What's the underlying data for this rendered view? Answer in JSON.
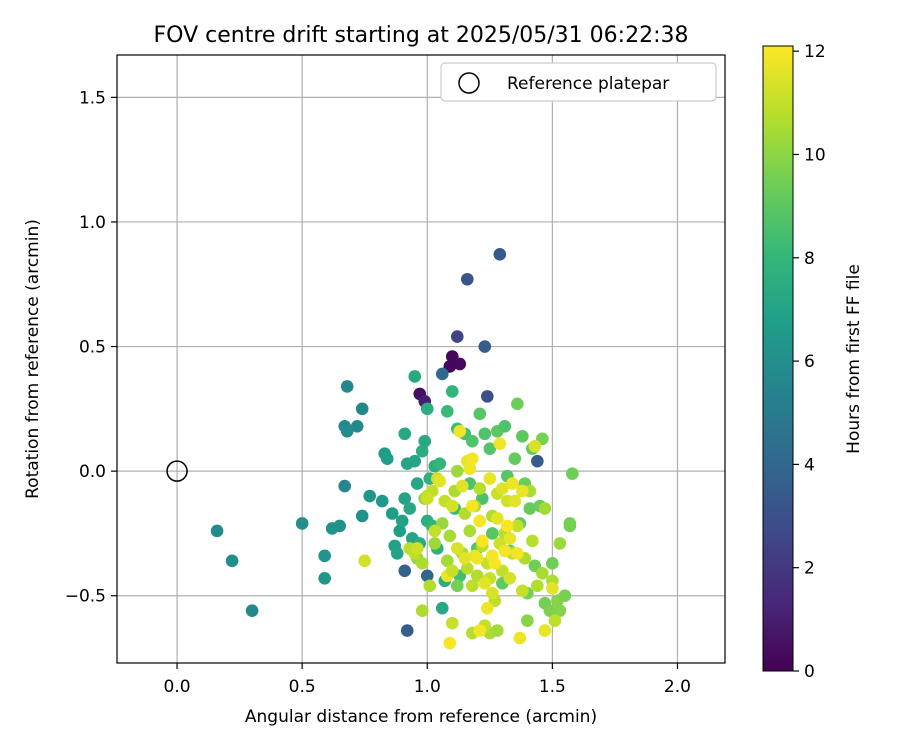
{
  "chart_data": {
    "type": "scatter",
    "title": "FOV centre drift starting at 2025/05/31 06:22:38",
    "xlabel": "Angular distance from reference (arcmin)",
    "ylabel": "Rotation from reference (arcmin)",
    "xlim": [
      -0.24,
      2.19
    ],
    "ylim": [
      -0.77,
      1.67
    ],
    "xticks": [
      0.0,
      0.5,
      1.0,
      1.5,
      2.0
    ],
    "xtick_labels": [
      "0.0",
      "0.5",
      "1.0",
      "1.5",
      "2.0"
    ],
    "yticks": [
      -0.5,
      0.0,
      0.5,
      1.0,
      1.5
    ],
    "ytick_labels": [
      "−0.5",
      "0.0",
      "0.5",
      "1.0",
      "1.5"
    ],
    "grid": true,
    "legend": {
      "placement": "top-right",
      "entries": [
        "Reference platepar"
      ]
    },
    "reference_point": {
      "x": 0.0,
      "y": 0.0,
      "label": "Reference platepar"
    },
    "colorbar": {
      "label": "Hours from first FF file",
      "colormap": "viridis",
      "range": [
        0,
        12.1
      ],
      "ticks": [
        0,
        2,
        4,
        6,
        8,
        10,
        12
      ],
      "tick_labels": [
        "0",
        "2",
        "4",
        "6",
        "8",
        "10",
        "12"
      ]
    },
    "colormap_stops": [
      "#440154",
      "#482878",
      "#3e4989",
      "#31688e",
      "#26828e",
      "#1f9e89",
      "#35b779",
      "#6ece58",
      "#b5de2b",
      "#fde725"
    ],
    "series": [
      {
        "points": [
          [
            1.1,
            0.46,
            0.1
          ],
          [
            1.13,
            0.43,
            0.3
          ],
          [
            1.09,
            0.42,
            0.2
          ],
          [
            0.97,
            0.31,
            0.5
          ],
          [
            0.99,
            0.28,
            1.0
          ],
          [
            1.12,
            0.54,
            2.5
          ],
          [
            1.16,
            0.77,
            3.2
          ],
          [
            1.29,
            0.87,
            3.4
          ],
          [
            1.23,
            0.5,
            3.6
          ],
          [
            1.24,
            0.3,
            3.0
          ],
          [
            1.06,
            0.39,
            4.2
          ],
          [
            1.44,
            0.04,
            3.5
          ],
          [
            0.92,
            -0.64,
            3.6
          ],
          [
            0.91,
            -0.4,
            3.8
          ],
          [
            1.0,
            -0.42,
            4.0
          ],
          [
            0.68,
            0.34,
            5.6
          ],
          [
            0.67,
            0.18,
            5.8
          ],
          [
            0.68,
            0.16,
            5.9
          ],
          [
            0.72,
            0.18,
            5.7
          ],
          [
            0.74,
            0.25,
            5.7
          ],
          [
            0.67,
            -0.06,
            5.6
          ],
          [
            0.16,
            -0.24,
            5.8
          ],
          [
            0.22,
            -0.36,
            5.9
          ],
          [
            0.3,
            -0.56,
            5.7
          ],
          [
            0.5,
            -0.21,
            6.0
          ],
          [
            0.59,
            -0.34,
            6.3
          ],
          [
            0.59,
            -0.43,
            6.4
          ],
          [
            0.62,
            -0.23,
            6.2
          ],
          [
            0.65,
            -0.22,
            6.1
          ],
          [
            0.74,
            -0.18,
            6.2
          ],
          [
            0.77,
            -0.1,
            6.4
          ],
          [
            0.82,
            -0.12,
            6.5
          ],
          [
            0.83,
            0.07,
            6.6
          ],
          [
            0.84,
            0.05,
            6.7
          ],
          [
            0.86,
            -0.17,
            6.8
          ],
          [
            0.87,
            -0.3,
            6.9
          ],
          [
            0.88,
            -0.33,
            7.0
          ],
          [
            0.89,
            -0.24,
            6.8
          ],
          [
            0.9,
            -0.2,
            6.9
          ],
          [
            0.91,
            -0.11,
            7.0
          ],
          [
            0.91,
            0.15,
            7.2
          ],
          [
            0.92,
            0.03,
            7.1
          ],
          [
            0.93,
            -0.15,
            7.2
          ],
          [
            0.94,
            -0.27,
            7.0
          ],
          [
            0.95,
            0.38,
            7.3
          ],
          [
            0.95,
            0.04,
            7.1
          ],
          [
            0.96,
            -0.05,
            7.2
          ],
          [
            0.97,
            -0.29,
            7.4
          ],
          [
            0.98,
            0.08,
            7.5
          ],
          [
            0.99,
            0.12,
            7.3
          ],
          [
            1.0,
            -0.2,
            7.6
          ],
          [
            1.0,
            0.25,
            7.5
          ],
          [
            1.01,
            -0.03,
            7.7
          ],
          [
            1.02,
            -0.22,
            7.8
          ],
          [
            1.03,
            0.02,
            7.6
          ],
          [
            1.04,
            -0.31,
            7.7
          ],
          [
            1.05,
            0.03,
            8.0
          ],
          [
            1.06,
            -0.55,
            7.2
          ],
          [
            1.07,
            -0.44,
            7.4
          ],
          [
            1.08,
            0.24,
            8.2
          ],
          [
            1.1,
            0.32,
            7.9
          ],
          [
            1.11,
            -0.15,
            8.1
          ],
          [
            1.12,
            0.17,
            8.3
          ],
          [
            1.13,
            -0.42,
            8.4
          ],
          [
            1.15,
            0.15,
            8.5
          ],
          [
            1.17,
            -0.05,
            8.6
          ],
          [
            1.18,
            0.12,
            8.7
          ],
          [
            1.2,
            -0.31,
            8.8
          ],
          [
            1.21,
            0.23,
            8.9
          ],
          [
            1.22,
            -0.11,
            8.6
          ],
          [
            1.23,
            0.15,
            8.7
          ],
          [
            1.25,
            0.09,
            8.8
          ],
          [
            1.26,
            -0.25,
            8.9
          ],
          [
            1.28,
            0.16,
            9.0
          ],
          [
            1.3,
            -0.45,
            9.1
          ],
          [
            1.31,
            0.18,
            8.7
          ],
          [
            1.32,
            -0.02,
            8.8
          ],
          [
            1.33,
            -0.32,
            9.0
          ],
          [
            1.35,
            0.05,
            9.2
          ],
          [
            1.36,
            0.27,
            9.4
          ],
          [
            1.37,
            -0.21,
            9.1
          ],
          [
            1.38,
            0.14,
            9.0
          ],
          [
            1.39,
            -0.05,
            9.3
          ],
          [
            1.4,
            -0.49,
            9.5
          ],
          [
            1.41,
            -0.15,
            9.2
          ],
          [
            1.42,
            0.09,
            9.1
          ],
          [
            1.43,
            -0.38,
            9.4
          ],
          [
            1.45,
            -0.14,
            9.3
          ],
          [
            1.46,
            0.13,
            9.6
          ],
          [
            1.47,
            -0.53,
            9.5
          ],
          [
            1.49,
            -0.56,
            9.7
          ],
          [
            1.5,
            -0.37,
            9.4
          ],
          [
            1.52,
            -0.52,
            9.8
          ],
          [
            1.55,
            -0.5,
            9.6
          ],
          [
            1.57,
            -0.21,
            9.5
          ],
          [
            1.57,
            -0.22,
            9.6
          ],
          [
            1.58,
            -0.01,
            9.4
          ],
          [
            1.53,
            -0.56,
            9.8
          ],
          [
            1.4,
            -0.6,
            9.9
          ],
          [
            1.12,
            -0.46,
            9.5
          ],
          [
            0.99,
            -0.11,
            10.0
          ],
          [
            0.96,
            -0.35,
            10.1
          ],
          [
            1.03,
            -0.29,
            10.3
          ],
          [
            1.06,
            -0.21,
            10.2
          ],
          [
            1.08,
            -0.36,
            10.4
          ],
          [
            1.09,
            -0.26,
            10.5
          ],
          [
            1.11,
            -0.08,
            10.6
          ],
          [
            1.12,
            0.0,
            10.3
          ],
          [
            1.14,
            -0.33,
            10.5
          ],
          [
            1.15,
            -0.17,
            10.7
          ],
          [
            1.16,
            -0.39,
            10.8
          ],
          [
            1.17,
            -0.24,
            10.6
          ],
          [
            1.18,
            -0.46,
            10.9
          ],
          [
            1.19,
            -0.14,
            10.4
          ],
          [
            1.2,
            -0.42,
            10.7
          ],
          [
            1.21,
            -0.07,
            10.8
          ],
          [
            1.22,
            -0.3,
            10.9
          ],
          [
            1.24,
            -0.37,
            11.0
          ],
          [
            1.25,
            -0.43,
            11.1
          ],
          [
            1.26,
            -0.18,
            10.7
          ],
          [
            1.27,
            -0.52,
            10.9
          ],
          [
            1.28,
            -0.09,
            11.1
          ],
          [
            1.29,
            -0.29,
            11.2
          ],
          [
            1.3,
            -0.4,
            11.0
          ],
          [
            1.31,
            -0.25,
            10.8
          ],
          [
            1.32,
            -0.12,
            11.2
          ],
          [
            1.33,
            -0.43,
            11.3
          ],
          [
            1.34,
            -0.33,
            10.9
          ],
          [
            1.36,
            -0.22,
            11.0
          ],
          [
            1.38,
            -0.48,
            11.1
          ],
          [
            1.39,
            -0.35,
            10.6
          ],
          [
            1.41,
            -0.08,
            10.5
          ],
          [
            1.42,
            -0.28,
            10.8
          ],
          [
            1.44,
            -0.46,
            10.7
          ],
          [
            1.46,
            -0.41,
            10.5
          ],
          [
            1.47,
            -0.15,
            10.4
          ],
          [
            1.5,
            -0.44,
            10.6
          ],
          [
            1.51,
            -0.6,
            10.9
          ],
          [
            1.53,
            -0.29,
            10.3
          ],
          [
            1.25,
            -0.65,
            10.6
          ],
          [
            1.18,
            -0.65,
            10.8
          ],
          [
            1.28,
            -0.64,
            10.4
          ],
          [
            1.23,
            -0.62,
            11.0
          ],
          [
            1.1,
            -0.61,
            11.1
          ],
          [
            0.98,
            -0.56,
            10.6
          ],
          [
            1.01,
            -0.46,
            10.7
          ],
          [
            0.93,
            -0.31,
            10.8
          ],
          [
            0.95,
            -0.33,
            10.9
          ],
          [
            0.98,
            -0.37,
            10.6
          ],
          [
            1.0,
            -0.1,
            10.9
          ],
          [
            1.02,
            -0.08,
            11.0
          ],
          [
            1.04,
            -0.03,
            11.2
          ],
          [
            1.07,
            -0.12,
            11.0
          ],
          [
            1.1,
            -0.14,
            11.3
          ],
          [
            1.12,
            -0.31,
            11.4
          ],
          [
            1.14,
            -0.06,
            11.5
          ],
          [
            1.15,
            -0.35,
            11.6
          ],
          [
            1.16,
            0.04,
            11.7
          ],
          [
            1.17,
            0.01,
            11.8
          ],
          [
            1.18,
            -0.14,
            11.9
          ],
          [
            1.19,
            -0.34,
            11.7
          ],
          [
            1.2,
            -0.35,
            11.8
          ],
          [
            1.21,
            -0.2,
            11.9
          ],
          [
            1.22,
            -0.28,
            12.0
          ],
          [
            1.23,
            -0.45,
            11.6
          ],
          [
            1.24,
            -0.55,
            11.8
          ],
          [
            1.25,
            -0.03,
            11.7
          ],
          [
            1.26,
            -0.34,
            11.9
          ],
          [
            1.27,
            -0.37,
            12.0
          ],
          [
            1.28,
            -0.19,
            11.6
          ],
          [
            1.29,
            0.11,
            11.8
          ],
          [
            1.3,
            -0.07,
            11.5
          ],
          [
            1.31,
            -0.32,
            11.9
          ],
          [
            1.32,
            -0.22,
            12.0
          ],
          [
            1.33,
            -0.27,
            11.7
          ],
          [
            1.34,
            -0.05,
            11.8
          ],
          [
            1.35,
            -0.12,
            11.6
          ],
          [
            1.36,
            -0.33,
            11.9
          ],
          [
            1.38,
            -0.08,
            11.7
          ],
          [
            1.13,
            0.16,
            11.8
          ],
          [
            1.18,
            0.05,
            11.9
          ],
          [
            1.08,
            -0.42,
            11.8
          ],
          [
            1.05,
            -0.04,
            11.6
          ],
          [
            1.09,
            -0.69,
            12.0
          ],
          [
            1.21,
            -0.64,
            11.9
          ],
          [
            1.37,
            -0.67,
            11.8
          ],
          [
            1.47,
            -0.64,
            11.7
          ],
          [
            1.5,
            -0.47,
            11.6
          ],
          [
            1.43,
            0.1,
            11.4
          ],
          [
            0.75,
            -0.36,
            11.3
          ],
          [
            1.0,
            -0.11,
            11.2
          ],
          [
            1.26,
            -0.49,
            11.4
          ],
          [
            0.96,
            -0.31,
            11.2
          ],
          [
            1.03,
            -0.24,
            11.0
          ],
          [
            1.1,
            -0.4,
            11.1
          ]
        ]
      }
    ]
  }
}
